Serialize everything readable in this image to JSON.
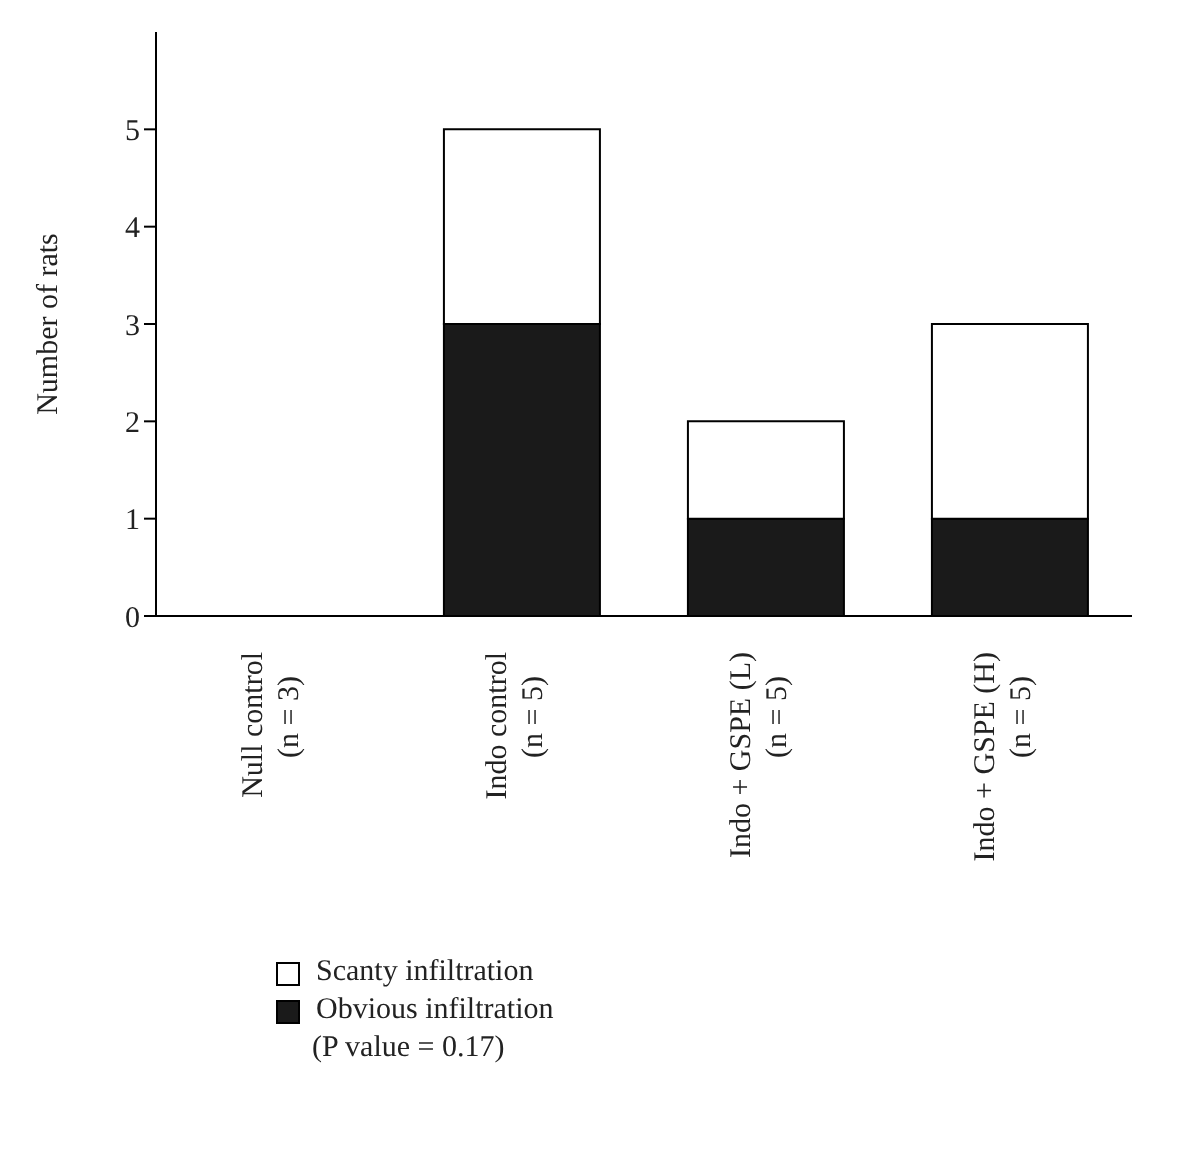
{
  "chart_data": {
    "type": "bar",
    "stacked": true,
    "ylabel": "Number of rats",
    "categories": [
      "Null control (n = 3)",
      "Indo control (n = 5)",
      "Indo + GSPE (L) (n = 5)",
      "Indo + GSPE (H) (n = 5)"
    ],
    "series": [
      {
        "name": "Obvious infiltration",
        "color": "#1a1a1a",
        "values": [
          0,
          3,
          1,
          1
        ]
      },
      {
        "name": "Scanty infiltration",
        "color": "#ffffff",
        "values": [
          0,
          2,
          1,
          2
        ]
      }
    ],
    "ylim": [
      0,
      6
    ],
    "yticks": [
      0,
      1,
      2,
      3,
      4,
      5
    ],
    "grid": false,
    "legend": "bottom",
    "annotations": [
      "(P value = 0.17)"
    ]
  }
}
